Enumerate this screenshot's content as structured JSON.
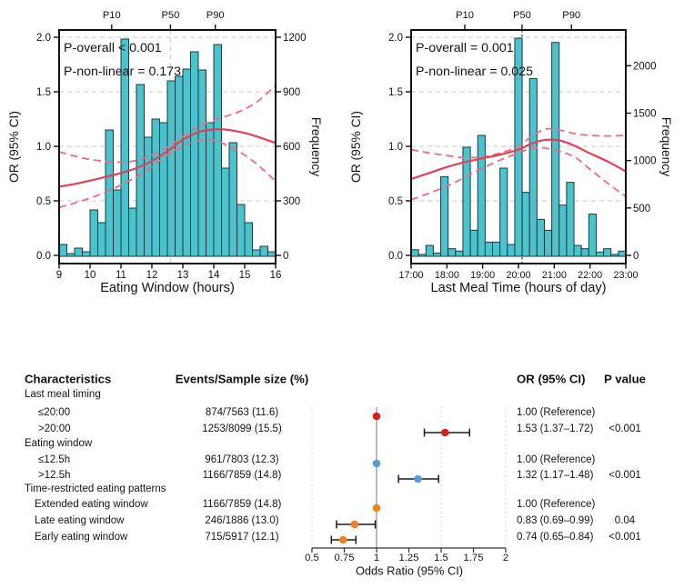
{
  "colors": {
    "bar_fill": "#4cc3cc",
    "bar_stroke": "#1c3b40",
    "or_line": "#e04159",
    "ci_line": "#e66e84",
    "grid": "#c7c7c7",
    "axis": "#111111",
    "red": "#d02420",
    "blue": "#5b9bd5",
    "orange": "#f08222",
    "reference_line": "#a0a0a0",
    "dotted_guide": "#d8d8d8"
  },
  "chart_data": [
    {
      "id": "eating-window-panel",
      "type": "histogram+line",
      "annotations": [
        "P-overall < 0.001",
        "P-non-linear = 0.173"
      ],
      "xlabel": "Eating Window (hours)",
      "ylabel_left": "OR (95% CI)",
      "ylabel_right": "Frequency",
      "x_range": [
        9,
        16
      ],
      "xtick_values": [
        9,
        10,
        11,
        12,
        13,
        14,
        15,
        16
      ],
      "xtick_labels": [
        "9",
        "10",
        "11",
        "12",
        "13",
        "14",
        "15",
        "16"
      ],
      "or_ticks": [
        0.0,
        0.5,
        1.0,
        1.5,
        2.0
      ],
      "or_tick_labels": [
        "0.0",
        "0.5",
        "1.0",
        "1.5",
        "2.0"
      ],
      "or_range": [
        0,
        2
      ],
      "freq_ticks": [
        0,
        300,
        600,
        900,
        1200
      ],
      "freq_tick_labels": [
        "0",
        "300",
        "600",
        "900",
        "1200"
      ],
      "freq_axis_max": 1200,
      "grid": true,
      "percentiles": [
        {
          "label": "P10",
          "value": 10.7
        },
        {
          "label": "P50",
          "value": 12.6
        },
        {
          "label": "P90",
          "value": 14.05
        }
      ],
      "median_line": {
        "value": 12.6,
        "style": "dashed-light"
      },
      "bars": {
        "start": 9.0,
        "bin_width": 0.25,
        "frequencies": [
          60,
          10,
          40,
          20,
          250,
          180,
          690,
          360,
          1190,
          260,
          940,
          650,
          750,
          730,
          960,
          985,
          1025,
          1120,
          1020,
          730,
          1160,
          480,
          620,
          280,
          180,
          30,
          50,
          20
        ]
      },
      "or_curve": {
        "solid": [
          [
            9,
            0.63
          ],
          [
            9.5,
            0.655
          ],
          [
            10,
            0.685
          ],
          [
            10.5,
            0.72
          ],
          [
            11,
            0.755
          ],
          [
            11.5,
            0.8
          ],
          [
            12,
            0.865
          ],
          [
            12.5,
            0.955
          ],
          [
            13,
            1.06
          ],
          [
            13.5,
            1.13
          ],
          [
            13.9,
            1.152
          ],
          [
            14.3,
            1.155
          ],
          [
            14.7,
            1.14
          ],
          [
            15.1,
            1.115
          ],
          [
            15.5,
            1.08
          ],
          [
            16,
            1.03
          ]
        ],
        "upper": [
          [
            9,
            0.95
          ],
          [
            9.5,
            0.91
          ],
          [
            10,
            0.88
          ],
          [
            10.5,
            0.862
          ],
          [
            11,
            0.855
          ],
          [
            11.5,
            0.87
          ],
          [
            12,
            0.92
          ],
          [
            12.5,
            0.99
          ],
          [
            13,
            1.09
          ],
          [
            13.5,
            1.18
          ],
          [
            14,
            1.24
          ],
          [
            14.5,
            1.285
          ],
          [
            15,
            1.34
          ],
          [
            15.5,
            1.43
          ],
          [
            16,
            1.56
          ]
        ],
        "lower": [
          [
            9,
            0.44
          ],
          [
            9.5,
            0.48
          ],
          [
            10,
            0.525
          ],
          [
            10.5,
            0.58
          ],
          [
            11,
            0.645
          ],
          [
            11.5,
            0.72
          ],
          [
            12,
            0.81
          ],
          [
            12.5,
            0.92
          ],
          [
            13,
            1.0
          ],
          [
            13.5,
            1.05
          ],
          [
            14,
            1.055
          ],
          [
            14.5,
            1.0
          ],
          [
            15,
            0.92
          ],
          [
            15.5,
            0.81
          ],
          [
            16,
            0.68
          ]
        ]
      }
    },
    {
      "id": "last-meal-time-panel",
      "type": "histogram+line",
      "annotations": [
        "P-overall = 0.001",
        "P-non-linear = 0.025"
      ],
      "xlabel": "Last Meal Time (hours of day)",
      "ylabel_left": "OR (95% CI)",
      "ylabel_right": "Frequency",
      "x_range": [
        17,
        23
      ],
      "xtick_values": [
        17,
        18,
        19,
        20,
        21,
        22,
        23
      ],
      "xtick_labels": [
        "17:00",
        "18:00",
        "19:00",
        "20:00",
        "21:00",
        "22:00",
        "23:00"
      ],
      "or_ticks": [
        0.0,
        0.5,
        1.0,
        1.5,
        2.0
      ],
      "or_tick_labels": [
        "0.0",
        "0.5",
        "1.0",
        "1.5",
        "2.0"
      ],
      "or_range": [
        0,
        2
      ],
      "freq_ticks": [
        0,
        500,
        1000,
        1500,
        2000
      ],
      "freq_tick_labels": [
        "0",
        "500",
        "1000",
        "1500",
        "2000"
      ],
      "freq_axis_max": 2300,
      "grid": true,
      "percentiles": [
        {
          "label": "P10",
          "value": 18.5
        },
        {
          "label": "P50",
          "value": 20.1
        },
        {
          "label": "P90",
          "value": 21.48
        }
      ],
      "median_line": {
        "value": 20.1,
        "style": "dotted-dark"
      },
      "bars": {
        "start": 17.0,
        "bin_width": 0.2069,
        "frequencies": [
          60,
          10,
          105,
          25,
          830,
          70,
          45,
          1140,
          265,
          1265,
          140,
          140,
          920,
          115,
          2290,
          665,
          1865,
          380,
          265,
          2245,
          530,
          770,
          105,
          70,
          435,
          35,
          70,
          10,
          45
        ]
      },
      "or_curve": {
        "solid": [
          [
            17,
            0.7
          ],
          [
            17.5,
            0.755
          ],
          [
            18,
            0.81
          ],
          [
            18.5,
            0.855
          ],
          [
            19,
            0.89
          ],
          [
            19.5,
            0.925
          ],
          [
            20,
            0.97
          ],
          [
            20.4,
            1.03
          ],
          [
            20.8,
            1.06
          ],
          [
            21.2,
            1.05
          ],
          [
            21.6,
            1.0
          ],
          [
            22,
            0.935
          ],
          [
            22.5,
            0.86
          ],
          [
            23,
            0.77
          ]
        ],
        "upper": [
          [
            17,
            0.97
          ],
          [
            17.5,
            0.94
          ],
          [
            18,
            0.915
          ],
          [
            18.5,
            0.895
          ],
          [
            19,
            0.905
          ],
          [
            19.5,
            0.94
          ],
          [
            20,
            1.0
          ],
          [
            20.4,
            1.1
          ],
          [
            20.8,
            1.16
          ],
          [
            21.2,
            1.145
          ],
          [
            21.6,
            1.115
          ],
          [
            22,
            1.1
          ],
          [
            22.5,
            1.095
          ],
          [
            23,
            1.1
          ]
        ],
        "lower": [
          [
            17,
            0.51
          ],
          [
            17.5,
            0.57
          ],
          [
            18,
            0.635
          ],
          [
            18.5,
            0.715
          ],
          [
            19,
            0.8
          ],
          [
            19.5,
            0.875
          ],
          [
            20,
            0.94
          ],
          [
            20.4,
            0.985
          ],
          [
            20.8,
            0.98
          ],
          [
            21.2,
            0.95
          ],
          [
            21.6,
            0.895
          ],
          [
            22,
            0.79
          ],
          [
            22.5,
            0.66
          ],
          [
            23,
            0.54
          ]
        ]
      }
    },
    {
      "id": "forest-panel",
      "type": "forest",
      "headers": {
        "characteristics": "Characteristics",
        "events": "Events/Sample size (%)",
        "or": "OR (95% CI)",
        "p": "P value"
      },
      "axis": {
        "label": "Odds Ratio (95% CI)",
        "min": 0.5,
        "max": 2,
        "tick_values": [
          0.5,
          0.75,
          1,
          1.25,
          1.5,
          1.75,
          2
        ],
        "tick_labels": [
          "0.5",
          "0.75",
          "1",
          "1.25",
          "1.5",
          "1.75",
          "2"
        ],
        "reference_value": 1,
        "dotted_values": [
          0.5,
          1.5,
          2
        ]
      },
      "groups": [
        {
          "label": "Last meal timing",
          "rows": [
            {
              "label": "≤20:00",
              "events": "874/7563 (11.6)",
              "or_text": "1.00 (Reference)",
              "p": "",
              "est": 1.0,
              "color_key": "red"
            },
            {
              "label": ">20:00",
              "events": "1253/8099 (15.5)",
              "or_text": "1.53 (1.37–1.72)",
              "p": "<0.001",
              "est": 1.53,
              "lo": 1.37,
              "hi": 1.72,
              "color_key": "red"
            }
          ]
        },
        {
          "label": "Eating window",
          "rows": [
            {
              "label": "≤12.5h",
              "events": "961/7803 (12.3)",
              "or_text": "1.00 (Reference)",
              "p": "",
              "est": 1.0,
              "color_key": "blue"
            },
            {
              "label": ">12.5h",
              "events": "1166/7859 (14.8)",
              "or_text": "1.32 (1.17–1.48)",
              "p": "<0.001",
              "est": 1.32,
              "lo": 1.17,
              "hi": 1.48,
              "color_key": "blue"
            }
          ]
        },
        {
          "label": "Time-restricted eating patterns",
          "rows": [
            {
              "label": "Extended eating window",
              "events": "1166/7859 (14.8)",
              "or_text": "1.00 (Reference)",
              "p": "",
              "est": 1.0,
              "color_key": "orange"
            },
            {
              "label": "Late eating window",
              "events": "246/1886 (13.0)",
              "or_text": "0.83 (0.69–0.99)",
              "p": "0.04",
              "est": 0.83,
              "lo": 0.69,
              "hi": 0.99,
              "color_key": "orange"
            },
            {
              "label": "Early eating window",
              "events": "715/5917 (12.1)",
              "or_text": "0.74 (0.65–0.84)",
              "p": "<0.001",
              "est": 0.74,
              "lo": 0.65,
              "hi": 0.84,
              "color_key": "orange"
            }
          ]
        }
      ]
    }
  ]
}
